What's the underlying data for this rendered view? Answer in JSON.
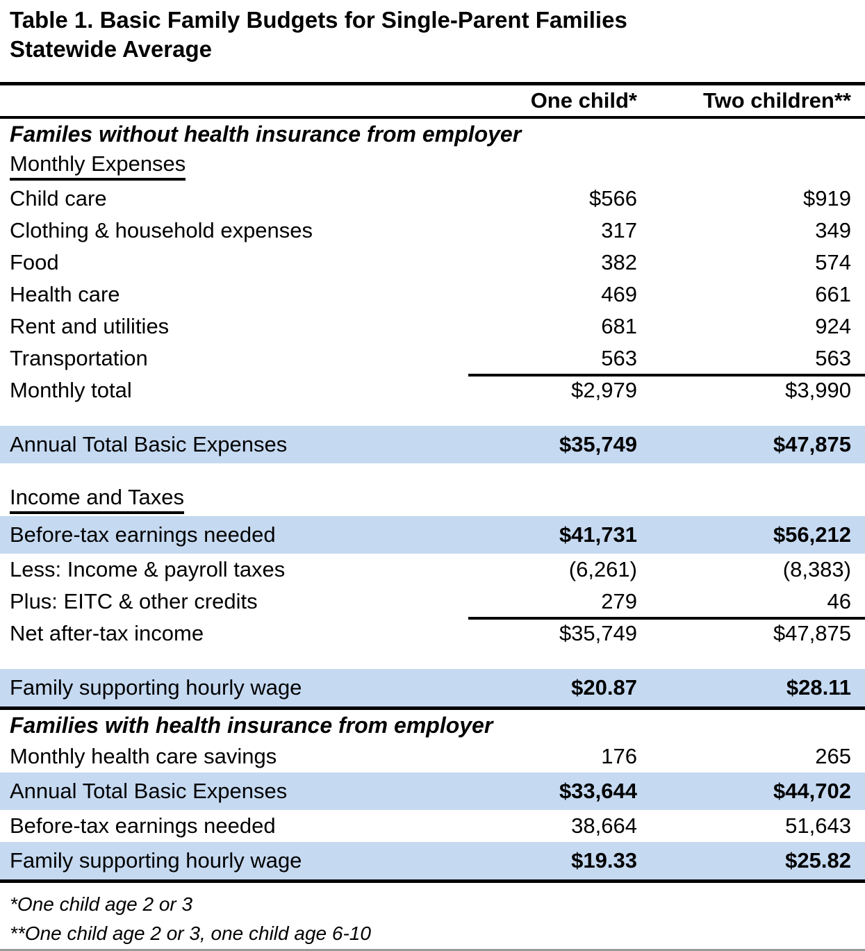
{
  "title": "Table 1. Basic Family Budgets for Single-Parent Families",
  "subtitle": "Statewide Average",
  "columns": {
    "col1": "One child*",
    "col2": "Two children**"
  },
  "colors": {
    "highlight": "#C5D9F1",
    "rule": "#000000",
    "text": "#000000"
  },
  "rows": [
    {
      "type": "section",
      "label": "Familes without health insurance from employer"
    },
    {
      "type": "subheading",
      "label": "Monthly Expenses"
    },
    {
      "type": "data",
      "label": "Child care",
      "col1": "$566",
      "col2": "$919"
    },
    {
      "type": "data",
      "label": "Clothing & household expenses",
      "col1": "317",
      "col2": "349"
    },
    {
      "type": "data",
      "label": "Food",
      "col1": "382",
      "col2": "574"
    },
    {
      "type": "data",
      "label": "Health care",
      "col1": "469",
      "col2": "661"
    },
    {
      "type": "data",
      "label": "Rent and utilities",
      "col1": "681",
      "col2": "924"
    },
    {
      "type": "data",
      "label": "Transportation",
      "col1": "563",
      "col2": "563"
    },
    {
      "type": "data",
      "label": "Monthly total",
      "col1": "$2,979",
      "col2": "$3,990",
      "topline": true
    },
    {
      "type": "gap"
    },
    {
      "type": "data",
      "label": "Annual Total Basic Expenses",
      "col1": "$35,749",
      "col2": "$47,875",
      "highlight": true,
      "boldValues": true
    },
    {
      "type": "gap"
    },
    {
      "type": "subheading",
      "label": "Income and Taxes"
    },
    {
      "type": "data",
      "label": "Before-tax earnings needed",
      "col1": "$41,731",
      "col2": "$56,212",
      "highlight": true,
      "boldValues": true
    },
    {
      "type": "data",
      "label": "Less: Income & payroll taxes",
      "col1": "(6,261)",
      "col2": "(8,383)"
    },
    {
      "type": "data",
      "label": "Plus: EITC & other credits",
      "col1": "279",
      "col2": "46"
    },
    {
      "type": "data",
      "label": "Net after-tax income",
      "col1": "$35,749",
      "col2": "$47,875",
      "topline": true
    },
    {
      "type": "gap"
    },
    {
      "type": "data",
      "label": "Family supporting hourly wage",
      "col1": "$20.87",
      "col2": "$28.11",
      "highlight": true,
      "boldValues": true
    },
    {
      "type": "rule"
    },
    {
      "type": "section",
      "label": "Families with health insurance from employer"
    },
    {
      "type": "data",
      "label": "Monthly health care savings",
      "col1": "176",
      "col2": "265"
    },
    {
      "type": "data",
      "label": "Annual Total Basic Expenses",
      "col1": "$33,644",
      "col2": "$44,702",
      "highlight": true,
      "boldValues": true
    },
    {
      "type": "data",
      "label": "Before-tax earnings needed",
      "col1": "38,664",
      "col2": "51,643"
    },
    {
      "type": "data",
      "label": "Family supporting hourly wage",
      "col1": "$19.33",
      "col2": "$25.82",
      "highlight": true,
      "boldValues": true
    },
    {
      "type": "rule"
    }
  ],
  "footnotes": [
    "*One child age 2 or 3",
    "**One child age 2 or 3, one child age 6-10"
  ]
}
